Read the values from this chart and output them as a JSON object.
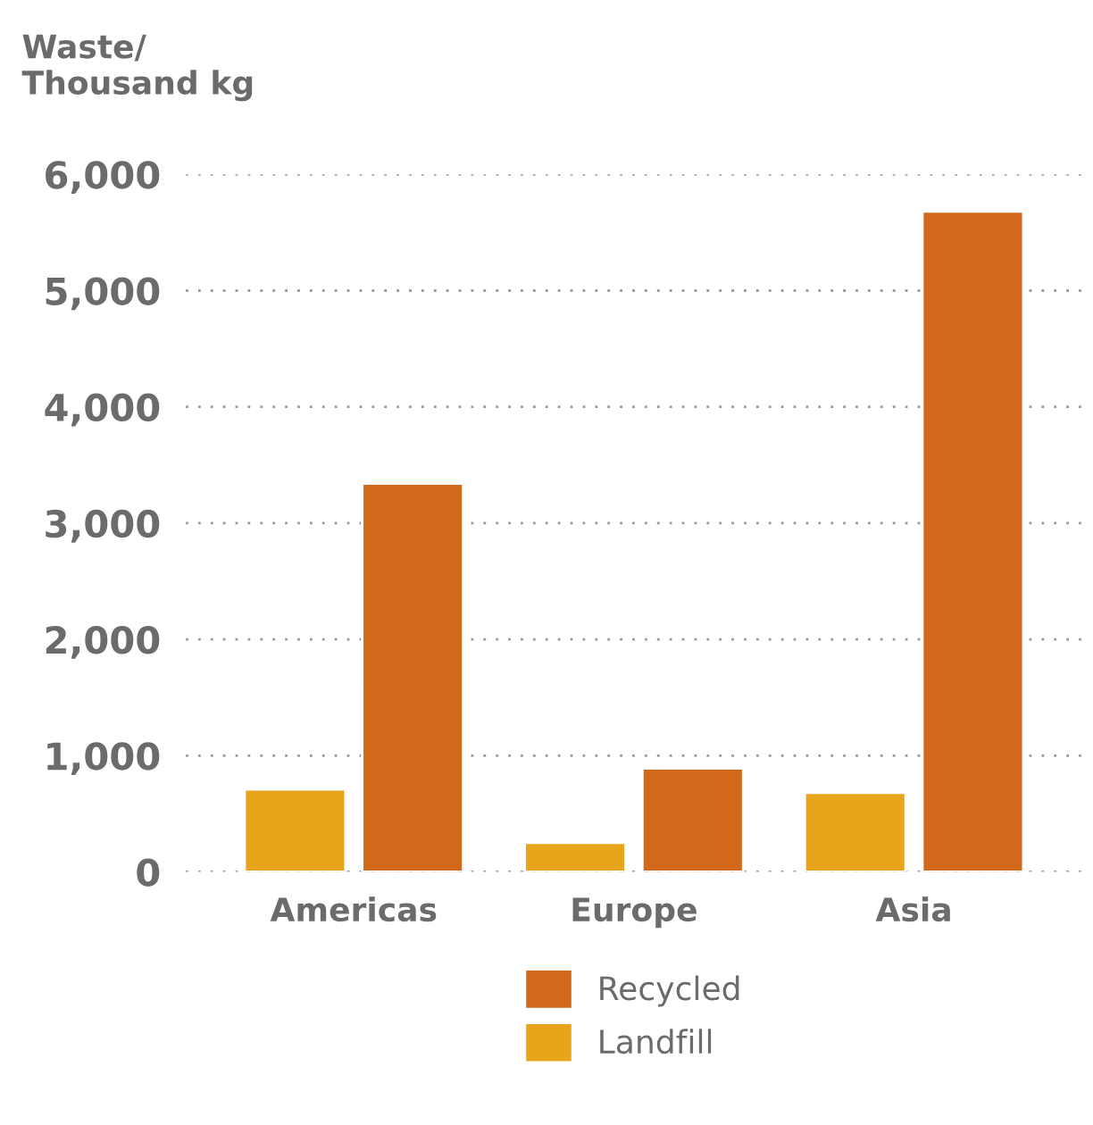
{
  "chart_data": {
    "type": "bar",
    "ylabel": "Waste/\nThousand kg",
    "categories": [
      "Americas",
      "Europe",
      "Asia"
    ],
    "series": [
      {
        "name": "Landfill",
        "color": "#e8a51c",
        "values": [
          710,
          250,
          680
        ]
      },
      {
        "name": "Recycled",
        "color": "#d2691a",
        "values": [
          3340,
          890,
          5680
        ]
      }
    ],
    "ylim": [
      0,
      6000
    ],
    "yticks": [
      {
        "value": 0,
        "label": "0"
      },
      {
        "value": 1000,
        "label": "1,000"
      },
      {
        "value": 2000,
        "label": "2,000"
      },
      {
        "value": 3000,
        "label": "3,000"
      },
      {
        "value": 4000,
        "label": "4,000"
      },
      {
        "value": 5000,
        "label": "5,000"
      },
      {
        "value": 6000,
        "label": "6,000"
      }
    ],
    "grid": "y",
    "legend": "bottom"
  }
}
